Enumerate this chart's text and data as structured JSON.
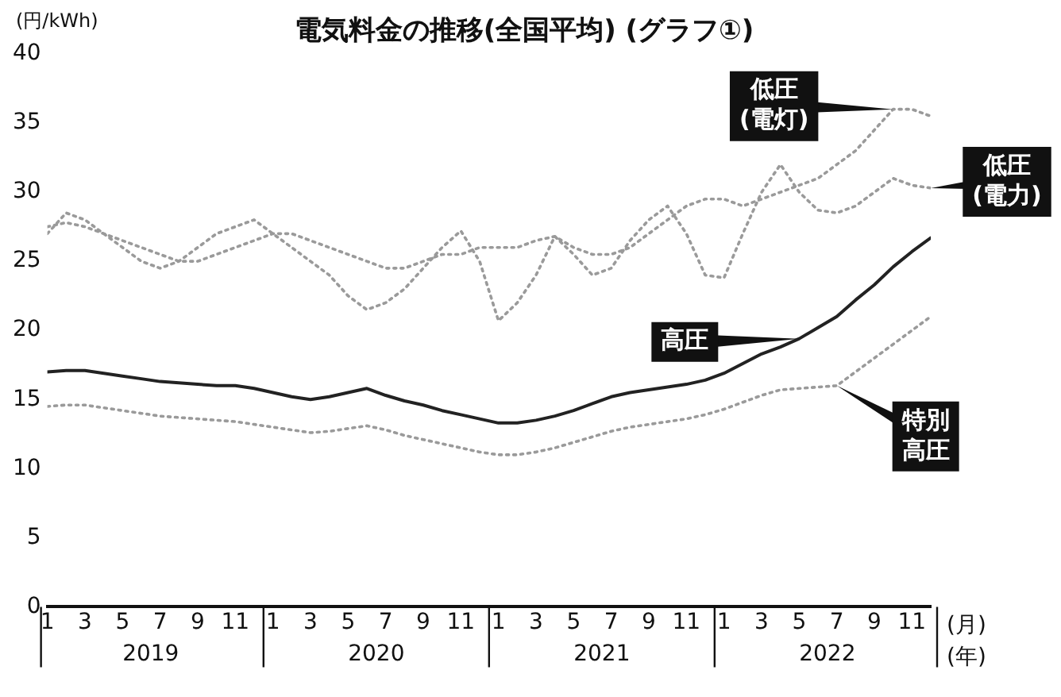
{
  "chart_data": {
    "type": "line",
    "title": "電気料金の推移(全国平均) (グラフ①)",
    "ylabel": "(円/kWh)",
    "xlabel": "(月)",
    "x": [
      "2019-01",
      "2019-02",
      "2019-03",
      "2019-04",
      "2019-05",
      "2019-06",
      "2019-07",
      "2019-08",
      "2019-09",
      "2019-10",
      "2019-11",
      "2019-12",
      "2020-01",
      "2020-02",
      "2020-03",
      "2020-04",
      "2020-05",
      "2020-06",
      "2020-07",
      "2020-08",
      "2020-09",
      "2020-10",
      "2020-11",
      "2020-12",
      "2021-01",
      "2021-02",
      "2021-03",
      "2021-04",
      "2021-05",
      "2021-06",
      "2021-07",
      "2021-08",
      "2021-09",
      "2021-10",
      "2021-11",
      "2021-12",
      "2022-01",
      "2022-02",
      "2022-03",
      "2022-04",
      "2022-05",
      "2022-06",
      "2022-07",
      "2022-08",
      "2022-09",
      "2022-10",
      "2022-11",
      "2022-12"
    ],
    "series": [
      {
        "name": "低圧(電灯)",
        "color": "#9a9a9a",
        "line_style": "dotted",
        "values": [
          27.5,
          27.8,
          27.5,
          27,
          26.5,
          26,
          25.5,
          25,
          25,
          25.5,
          26,
          26.5,
          27,
          27,
          26.5,
          26,
          25.5,
          25,
          24.5,
          24.5,
          25,
          25.5,
          25.5,
          26,
          26,
          26,
          26.5,
          26.8,
          26,
          25.5,
          25.5,
          26,
          27,
          28,
          29,
          29.5,
          29.5,
          29,
          29.5,
          30,
          30.5,
          31,
          32,
          33,
          34.5,
          36,
          36,
          35.5
        ]
      },
      {
        "name": "低圧(電力)",
        "color": "#9a9a9a",
        "line_style": "dotted",
        "values": [
          27,
          28.5,
          28,
          27,
          26,
          25,
          24.5,
          25,
          26,
          27,
          27.5,
          28,
          27,
          26,
          25,
          24,
          22.5,
          21.5,
          22,
          23,
          24.5,
          26,
          27.2,
          25,
          20.7,
          22,
          24,
          26.8,
          25.5,
          24,
          24.5,
          26.5,
          28,
          29,
          27,
          24,
          23.8,
          27,
          30,
          32,
          30,
          28.7,
          28.5,
          29,
          30,
          31,
          30.5,
          30.3
        ]
      },
      {
        "name": "高圧",
        "color": "#222222",
        "line_style": "solid",
        "values": [
          17,
          17.1,
          17.1,
          16.9,
          16.7,
          16.5,
          16.3,
          16.2,
          16.1,
          16,
          16,
          15.8,
          15.5,
          15.2,
          15,
          15.2,
          15.5,
          15.8,
          15.3,
          14.9,
          14.6,
          14.2,
          13.9,
          13.6,
          13.3,
          13.3,
          13.5,
          13.8,
          14.2,
          14.7,
          15.2,
          15.5,
          15.7,
          15.9,
          16.1,
          16.4,
          16.9,
          17.6,
          18.3,
          18.8,
          19.4,
          20.2,
          21,
          22.2,
          23.3,
          24.6,
          25.7,
          26.7
        ]
      },
      {
        "name": "特別高圧",
        "color": "#9a9a9a",
        "line_style": "dotted",
        "values": [
          14.5,
          14.6,
          14.6,
          14.4,
          14.2,
          14,
          13.8,
          13.7,
          13.6,
          13.5,
          13.4,
          13.2,
          13,
          12.8,
          12.6,
          12.7,
          12.9,
          13.1,
          12.8,
          12.4,
          12.1,
          11.8,
          11.5,
          11.2,
          11,
          11,
          11.2,
          11.5,
          11.9,
          12.3,
          12.7,
          13,
          13.2,
          13.4,
          13.6,
          13.9,
          14.3,
          14.8,
          15.3,
          15.7,
          15.8,
          15.9,
          16,
          17,
          18,
          19,
          20,
          21
        ]
      }
    ],
    "xlim": [
      "2019-01",
      "2022-12"
    ],
    "xticks": [
      {
        "value": "2019-01",
        "label": "1"
      },
      {
        "value": "2019-03",
        "label": "3"
      },
      {
        "value": "2019-05",
        "label": "5"
      },
      {
        "value": "2019-07",
        "label": "7"
      },
      {
        "value": "2019-09",
        "label": "9"
      },
      {
        "value": "2019-11",
        "label": "11"
      },
      {
        "value": "2020-01",
        "label": "1"
      },
      {
        "value": "2020-03",
        "label": "3"
      },
      {
        "value": "2020-05",
        "label": "5"
      },
      {
        "value": "2020-07",
        "label": "7"
      },
      {
        "value": "2020-09",
        "label": "9"
      },
      {
        "value": "2020-11",
        "label": "11"
      },
      {
        "value": "2021-01",
        "label": "1"
      },
      {
        "value": "2021-03",
        "label": "3"
      },
      {
        "value": "2021-05",
        "label": "5"
      },
      {
        "value": "2021-07",
        "label": "7"
      },
      {
        "value": "2021-09",
        "label": "9"
      },
      {
        "value": "2021-11",
        "label": "11"
      },
      {
        "value": "2022-01",
        "label": "1"
      },
      {
        "value": "2022-03",
        "label": "3"
      },
      {
        "value": "2022-05",
        "label": "5"
      },
      {
        "value": "2022-07",
        "label": "7"
      },
      {
        "value": "2022-09",
        "label": "9"
      },
      {
        "value": "2022-11",
        "label": "11"
      }
    ],
    "ylim": [
      0,
      40
    ],
    "yticks": [
      0,
      5,
      10,
      15,
      20,
      25,
      30,
      35,
      40
    ],
    "grid": false,
    "legend": false,
    "marker": "none",
    "annotations": [
      "2019",
      "2020",
      "2021",
      "2022",
      "(年)"
    ]
  }
}
